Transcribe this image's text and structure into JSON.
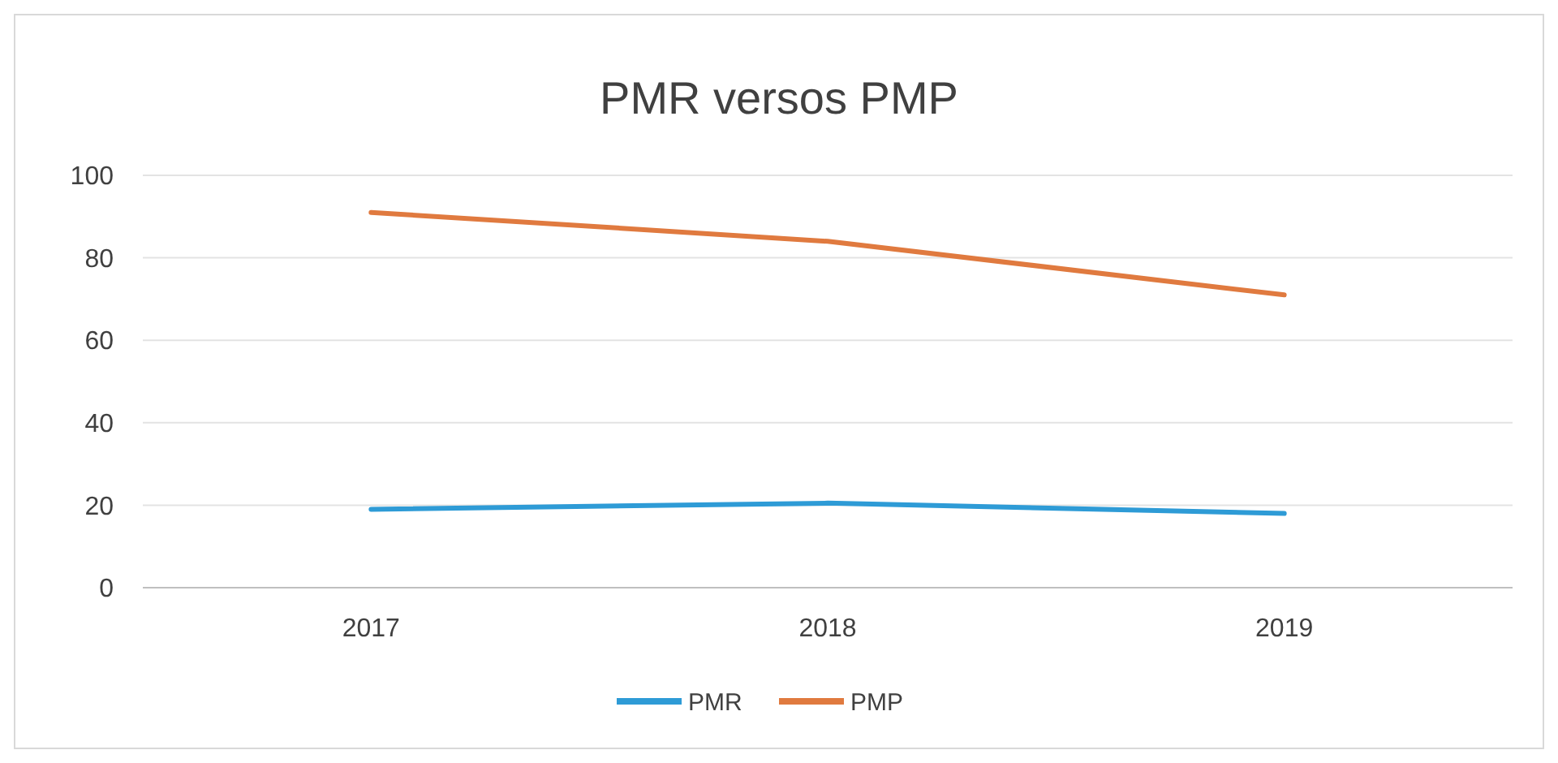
{
  "chart_data": {
    "type": "line",
    "title": "PMR versos PMP",
    "categories": [
      "2017",
      "2018",
      "2019"
    ],
    "series": [
      {
        "name": "PMR",
        "color": "#2e9bd6",
        "values": [
          19,
          20.5,
          18
        ]
      },
      {
        "name": "PMP",
        "color": "#e07a3f",
        "values": [
          91,
          84,
          71
        ]
      }
    ],
    "ylim": [
      0,
      100
    ],
    "yticks": [
      0,
      20,
      40,
      60,
      80,
      100
    ],
    "grid": "y",
    "legend": "bottom",
    "line_style": "solid",
    "marker": "none"
  }
}
